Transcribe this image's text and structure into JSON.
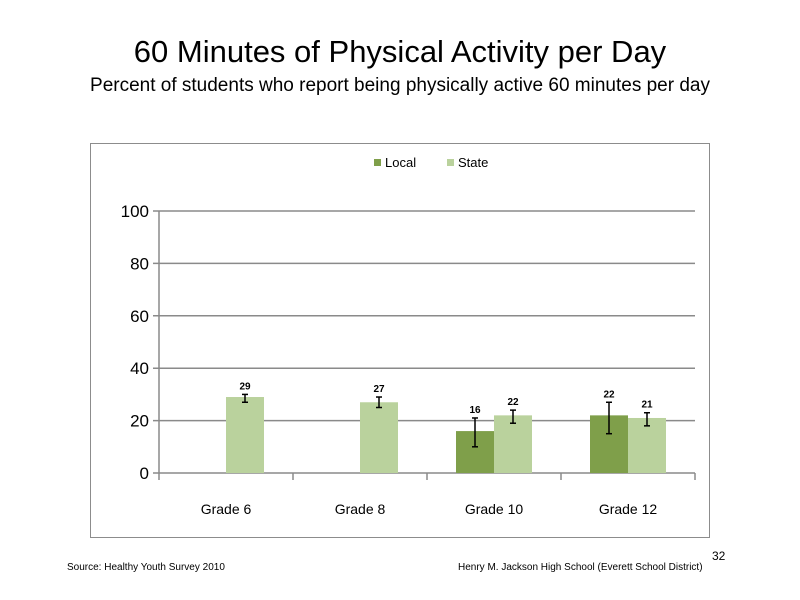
{
  "slide": {
    "title": "60 Minutes of Physical Activity per Day",
    "subtitle": "Percent of students who report being physically active 60 minutes per day",
    "source": "Source: Healthy Youth Survey 2010",
    "credit": "Henry M. Jackson High School (Everett School District)",
    "page_number": "32"
  },
  "chart_data": {
    "type": "bar",
    "title": "",
    "xlabel": "",
    "ylabel": "",
    "categories": [
      "Grade 6",
      "Grade 8",
      "Grade 10",
      "Grade 12"
    ],
    "ylim": [
      0,
      100
    ],
    "yticks": [
      0,
      20,
      40,
      60,
      80,
      100
    ],
    "grid": true,
    "legend_position": "top-center",
    "series": [
      {
        "name": "Local",
        "color": "#7f9f4a",
        "values": [
          null,
          null,
          16,
          22
        ],
        "labels": [
          "",
          "",
          "16",
          "22"
        ],
        "error_low": [
          null,
          null,
          10,
          15
        ],
        "error_high": [
          null,
          null,
          21,
          27
        ]
      },
      {
        "name": "State",
        "color": "#bad29d",
        "values": [
          29,
          27,
          22,
          21
        ],
        "labels": [
          "29",
          "27",
          "22",
          "21"
        ],
        "error_low": [
          27,
          25,
          19,
          18
        ],
        "error_high": [
          30,
          29,
          24,
          23
        ]
      }
    ]
  }
}
